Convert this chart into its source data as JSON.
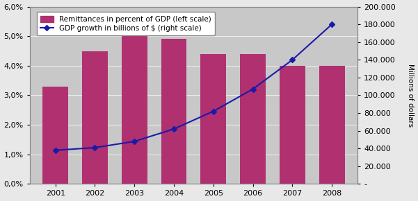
{
  "years": [
    2001,
    2002,
    2003,
    2004,
    2005,
    2006,
    2007,
    2008
  ],
  "remittances_pct": [
    0.033,
    0.045,
    0.05,
    0.049,
    0.044,
    0.044,
    0.04,
    0.04
  ],
  "gdp_billions": [
    38000,
    41000,
    48000,
    62000,
    82000,
    107000,
    140000,
    180000
  ],
  "bar_color": "#b03070",
  "line_color": "#1a1aaa",
  "marker_color": "#1a1aaa",
  "background_color": "#c8c8c8",
  "fig_background": "#e8e8e8",
  "legend_label_bar": "Remittances in percent of GDP (left scale)",
  "legend_label_line": "GDP growth in billions of $ (right scale)",
  "ylabel_right": "Millions of dollars",
  "ylim_left": [
    0,
    0.06
  ],
  "ylim_right": [
    0,
    200000
  ],
  "yticks_left": [
    0.0,
    0.01,
    0.02,
    0.03,
    0.04,
    0.05,
    0.06
  ],
  "yticks_right": [
    0,
    20000,
    40000,
    60000,
    80000,
    100000,
    120000,
    140000,
    160000,
    180000,
    200000
  ]
}
